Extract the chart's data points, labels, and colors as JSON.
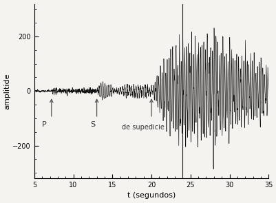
{
  "xlabel": "t (segundos)",
  "ylabel": "amplitide",
  "xlim": [
    5,
    35
  ],
  "ylim": [
    -320,
    320
  ],
  "yticks": [
    -200,
    0,
    200
  ],
  "xticks": [
    5,
    10,
    15,
    20,
    25,
    30,
    35
  ],
  "p_wave_time": 7.2,
  "s_wave_time": 13.0,
  "surface_wave_time": 20.0,
  "vline_time": 24.0,
  "p_label": "P",
  "s_label": "S",
  "surface_label": "de supedicie",
  "bg_color": "#f5f3f0",
  "line_color": "#111111",
  "arrow_color": "#555555",
  "seed": 12345
}
